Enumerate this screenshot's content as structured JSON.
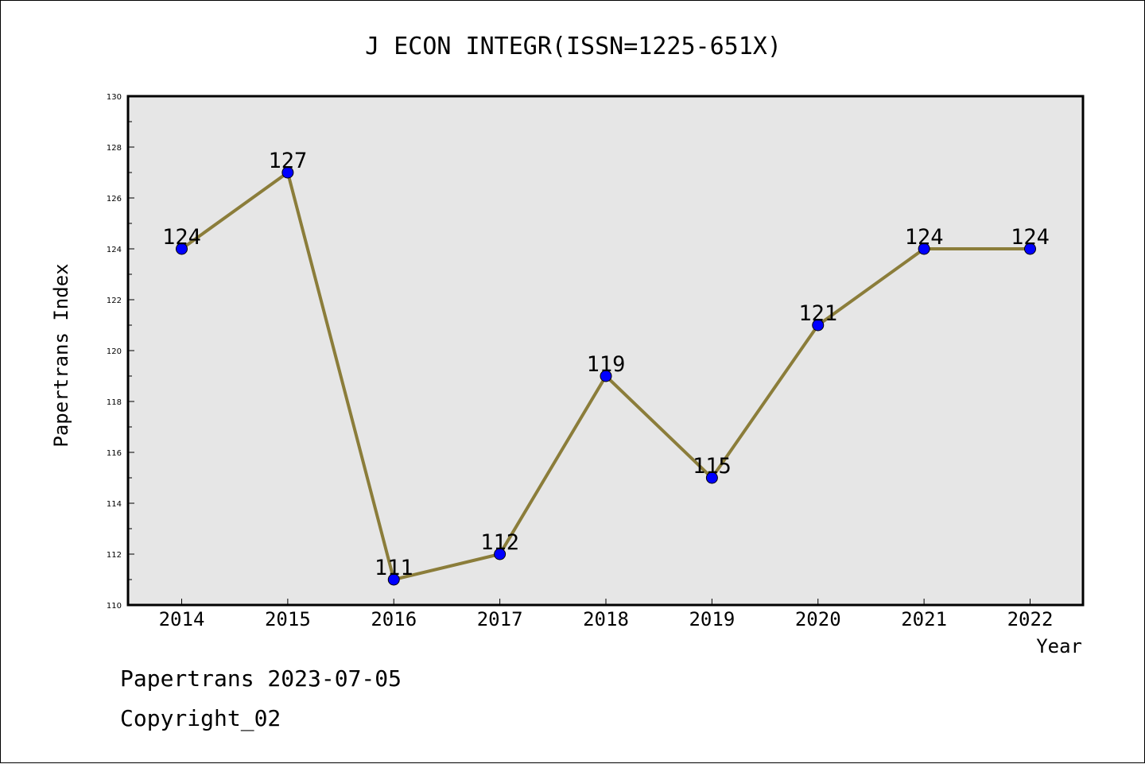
{
  "chart_data": {
    "type": "line",
    "title": "J ECON INTEGR(ISSN=1225-651X)",
    "xlabel": "Year",
    "ylabel": "Papertrans Index",
    "categories": [
      "2014",
      "2015",
      "2016",
      "2017",
      "2018",
      "2019",
      "2020",
      "2021",
      "2022"
    ],
    "series": [
      {
        "values": [
          124,
          127,
          111,
          112,
          119,
          115,
          121,
          124,
          124
        ],
        "line_color": "#8b7d3a",
        "marker_color": "#0000ff"
      }
    ],
    "ylim": [
      110,
      130
    ],
    "yticks": [
      110,
      112,
      114,
      116,
      118,
      120,
      122,
      124,
      126,
      128,
      130
    ],
    "plot_background": "#e6e6e6",
    "grid": false,
    "data_labels": true
  },
  "footer": {
    "date_line": "Papertrans 2023-07-05",
    "copyright_line": "Copyright_02"
  }
}
